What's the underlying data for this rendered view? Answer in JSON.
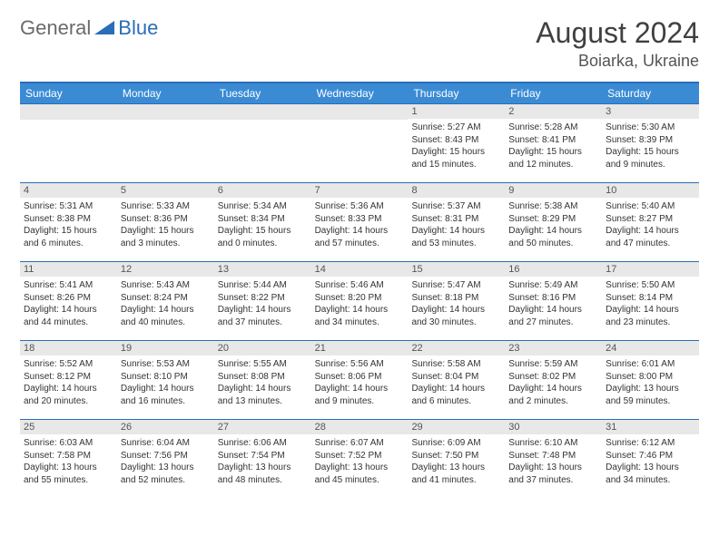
{
  "brand": {
    "general": "General",
    "blue": "Blue",
    "icon_color": "#2a6db8"
  },
  "title": "August 2024",
  "location": "Boiarka, Ukraine",
  "colors": {
    "header_bg": "#3b8bd4",
    "border": "#2a6db8",
    "daynum_bg": "#e8e8e8",
    "text": "#333333"
  },
  "weekdays": [
    "Sunday",
    "Monday",
    "Tuesday",
    "Wednesday",
    "Thursday",
    "Friday",
    "Saturday"
  ],
  "weeks": [
    [
      {
        "n": "",
        "sr": "",
        "ss": "",
        "dl": ""
      },
      {
        "n": "",
        "sr": "",
        "ss": "",
        "dl": ""
      },
      {
        "n": "",
        "sr": "",
        "ss": "",
        "dl": ""
      },
      {
        "n": "",
        "sr": "",
        "ss": "",
        "dl": ""
      },
      {
        "n": "1",
        "sr": "Sunrise: 5:27 AM",
        "ss": "Sunset: 8:43 PM",
        "dl": "Daylight: 15 hours and 15 minutes."
      },
      {
        "n": "2",
        "sr": "Sunrise: 5:28 AM",
        "ss": "Sunset: 8:41 PM",
        "dl": "Daylight: 15 hours and 12 minutes."
      },
      {
        "n": "3",
        "sr": "Sunrise: 5:30 AM",
        "ss": "Sunset: 8:39 PM",
        "dl": "Daylight: 15 hours and 9 minutes."
      }
    ],
    [
      {
        "n": "4",
        "sr": "Sunrise: 5:31 AM",
        "ss": "Sunset: 8:38 PM",
        "dl": "Daylight: 15 hours and 6 minutes."
      },
      {
        "n": "5",
        "sr": "Sunrise: 5:33 AM",
        "ss": "Sunset: 8:36 PM",
        "dl": "Daylight: 15 hours and 3 minutes."
      },
      {
        "n": "6",
        "sr": "Sunrise: 5:34 AM",
        "ss": "Sunset: 8:34 PM",
        "dl": "Daylight: 15 hours and 0 minutes."
      },
      {
        "n": "7",
        "sr": "Sunrise: 5:36 AM",
        "ss": "Sunset: 8:33 PM",
        "dl": "Daylight: 14 hours and 57 minutes."
      },
      {
        "n": "8",
        "sr": "Sunrise: 5:37 AM",
        "ss": "Sunset: 8:31 PM",
        "dl": "Daylight: 14 hours and 53 minutes."
      },
      {
        "n": "9",
        "sr": "Sunrise: 5:38 AM",
        "ss": "Sunset: 8:29 PM",
        "dl": "Daylight: 14 hours and 50 minutes."
      },
      {
        "n": "10",
        "sr": "Sunrise: 5:40 AM",
        "ss": "Sunset: 8:27 PM",
        "dl": "Daylight: 14 hours and 47 minutes."
      }
    ],
    [
      {
        "n": "11",
        "sr": "Sunrise: 5:41 AM",
        "ss": "Sunset: 8:26 PM",
        "dl": "Daylight: 14 hours and 44 minutes."
      },
      {
        "n": "12",
        "sr": "Sunrise: 5:43 AM",
        "ss": "Sunset: 8:24 PM",
        "dl": "Daylight: 14 hours and 40 minutes."
      },
      {
        "n": "13",
        "sr": "Sunrise: 5:44 AM",
        "ss": "Sunset: 8:22 PM",
        "dl": "Daylight: 14 hours and 37 minutes."
      },
      {
        "n": "14",
        "sr": "Sunrise: 5:46 AM",
        "ss": "Sunset: 8:20 PM",
        "dl": "Daylight: 14 hours and 34 minutes."
      },
      {
        "n": "15",
        "sr": "Sunrise: 5:47 AM",
        "ss": "Sunset: 8:18 PM",
        "dl": "Daylight: 14 hours and 30 minutes."
      },
      {
        "n": "16",
        "sr": "Sunrise: 5:49 AM",
        "ss": "Sunset: 8:16 PM",
        "dl": "Daylight: 14 hours and 27 minutes."
      },
      {
        "n": "17",
        "sr": "Sunrise: 5:50 AM",
        "ss": "Sunset: 8:14 PM",
        "dl": "Daylight: 14 hours and 23 minutes."
      }
    ],
    [
      {
        "n": "18",
        "sr": "Sunrise: 5:52 AM",
        "ss": "Sunset: 8:12 PM",
        "dl": "Daylight: 14 hours and 20 minutes."
      },
      {
        "n": "19",
        "sr": "Sunrise: 5:53 AM",
        "ss": "Sunset: 8:10 PM",
        "dl": "Daylight: 14 hours and 16 minutes."
      },
      {
        "n": "20",
        "sr": "Sunrise: 5:55 AM",
        "ss": "Sunset: 8:08 PM",
        "dl": "Daylight: 14 hours and 13 minutes."
      },
      {
        "n": "21",
        "sr": "Sunrise: 5:56 AM",
        "ss": "Sunset: 8:06 PM",
        "dl": "Daylight: 14 hours and 9 minutes."
      },
      {
        "n": "22",
        "sr": "Sunrise: 5:58 AM",
        "ss": "Sunset: 8:04 PM",
        "dl": "Daylight: 14 hours and 6 minutes."
      },
      {
        "n": "23",
        "sr": "Sunrise: 5:59 AM",
        "ss": "Sunset: 8:02 PM",
        "dl": "Daylight: 14 hours and 2 minutes."
      },
      {
        "n": "24",
        "sr": "Sunrise: 6:01 AM",
        "ss": "Sunset: 8:00 PM",
        "dl": "Daylight: 13 hours and 59 minutes."
      }
    ],
    [
      {
        "n": "25",
        "sr": "Sunrise: 6:03 AM",
        "ss": "Sunset: 7:58 PM",
        "dl": "Daylight: 13 hours and 55 minutes."
      },
      {
        "n": "26",
        "sr": "Sunrise: 6:04 AM",
        "ss": "Sunset: 7:56 PM",
        "dl": "Daylight: 13 hours and 52 minutes."
      },
      {
        "n": "27",
        "sr": "Sunrise: 6:06 AM",
        "ss": "Sunset: 7:54 PM",
        "dl": "Daylight: 13 hours and 48 minutes."
      },
      {
        "n": "28",
        "sr": "Sunrise: 6:07 AM",
        "ss": "Sunset: 7:52 PM",
        "dl": "Daylight: 13 hours and 45 minutes."
      },
      {
        "n": "29",
        "sr": "Sunrise: 6:09 AM",
        "ss": "Sunset: 7:50 PM",
        "dl": "Daylight: 13 hours and 41 minutes."
      },
      {
        "n": "30",
        "sr": "Sunrise: 6:10 AM",
        "ss": "Sunset: 7:48 PM",
        "dl": "Daylight: 13 hours and 37 minutes."
      },
      {
        "n": "31",
        "sr": "Sunrise: 6:12 AM",
        "ss": "Sunset: 7:46 PM",
        "dl": "Daylight: 13 hours and 34 minutes."
      }
    ]
  ]
}
